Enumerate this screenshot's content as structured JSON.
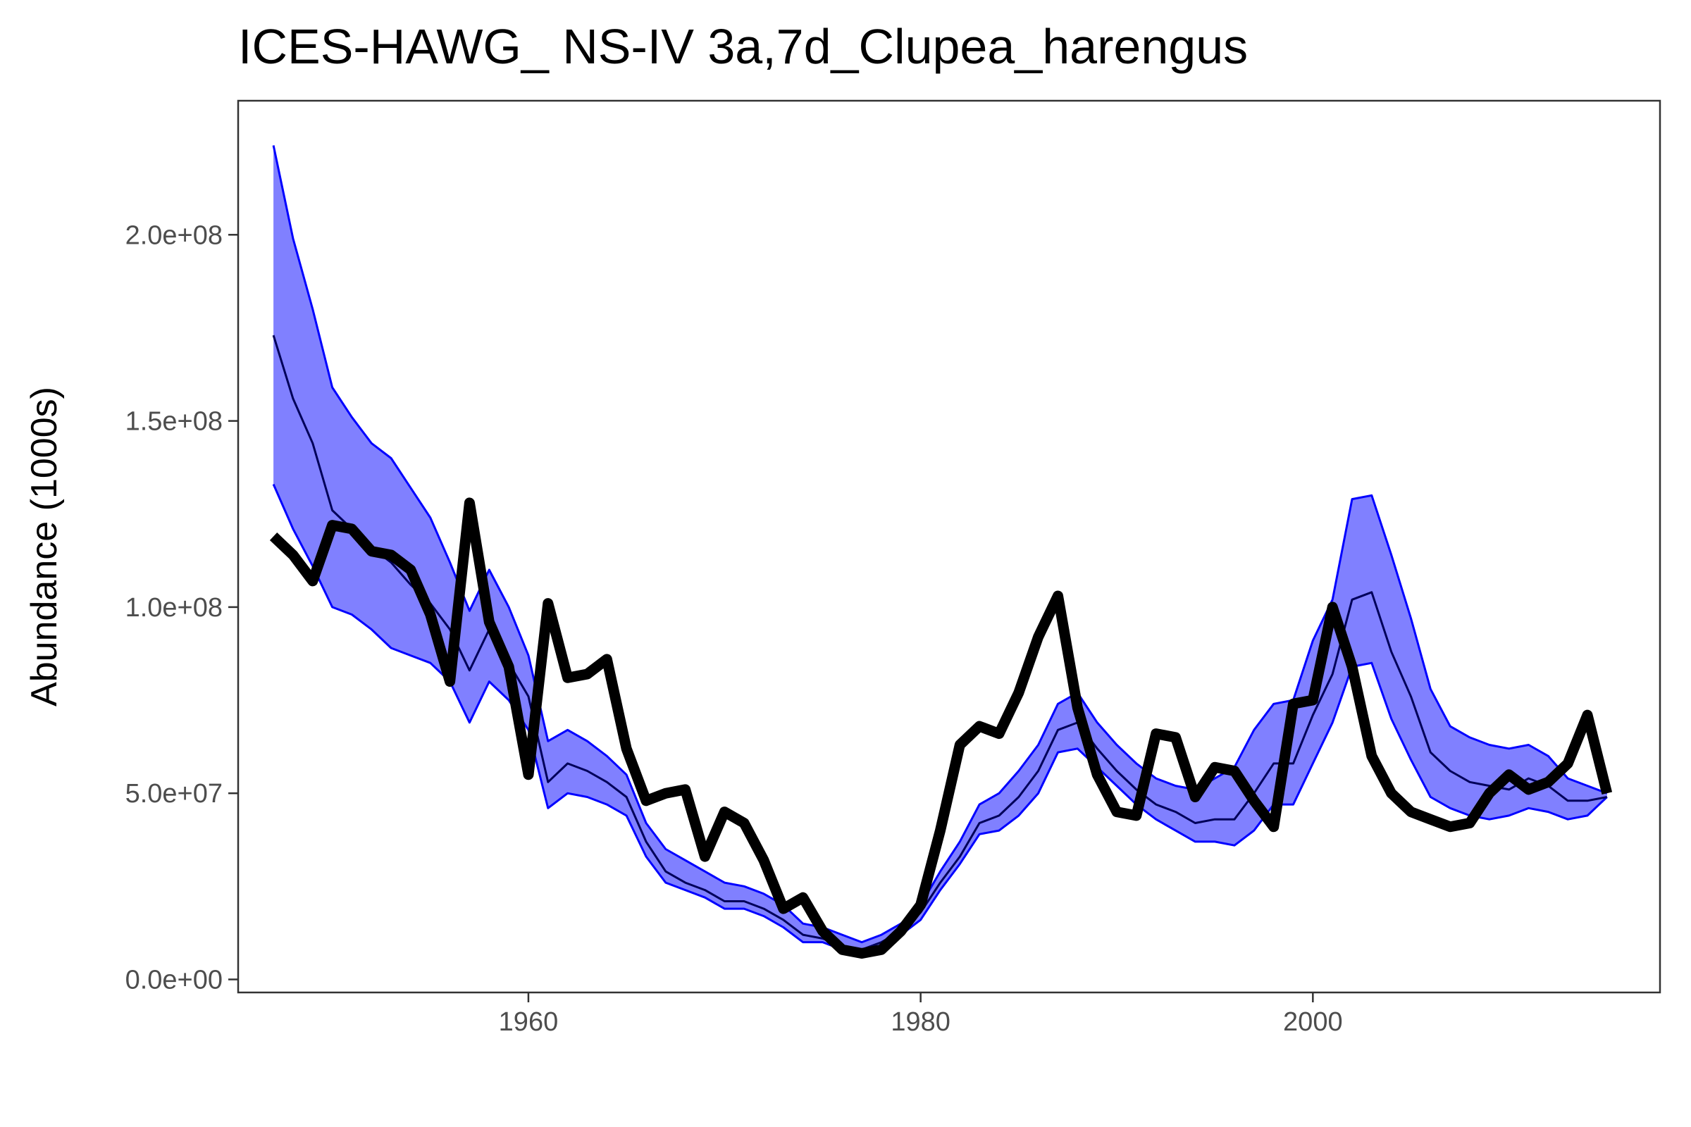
{
  "chart_data": {
    "type": "line",
    "title": "ICES-HAWG_ NS-IV 3a,7d_Clupea_harengus",
    "xlabel": "",
    "ylabel": "Abundance (1000s)",
    "xlim": [
      1945.2,
      2017.7
    ],
    "ylim": [
      -3500000,
      236000000
    ],
    "x_ticks": [
      1960,
      1980,
      2000
    ],
    "x_tick_labels": [
      "1960",
      "1980",
      "2000"
    ],
    "y_ticks": [
      0,
      50000000,
      100000000,
      150000000,
      200000000
    ],
    "y_tick_labels": [
      "0.0e+00",
      "5.0e+07",
      "1.0e+08",
      "1.5e+08",
      "2.0e+08"
    ],
    "grid": false,
    "legend": "none",
    "colors": {
      "band_fill": "#8080ff",
      "band_edge": "#0000ff",
      "median_line": "#00005a",
      "observed_line": "#000000",
      "panel_border": "#333333"
    },
    "x": [
      1947,
      1948,
      1949,
      1950,
      1951,
      1952,
      1953,
      1954,
      1955,
      1956,
      1957,
      1958,
      1959,
      1960,
      1961,
      1962,
      1963,
      1964,
      1965,
      1966,
      1967,
      1968,
      1969,
      1970,
      1971,
      1972,
      1973,
      1974,
      1975,
      1976,
      1977,
      1978,
      1979,
      1980,
      1981,
      1982,
      1983,
      1984,
      1985,
      1986,
      1987,
      1988,
      1989,
      1990,
      1991,
      1992,
      1993,
      1994,
      1995,
      1996,
      1997,
      1998,
      1999,
      2000,
      2001,
      2002,
      2003,
      2004,
      2005,
      2006,
      2007,
      2008,
      2009,
      2010,
      2011,
      2012,
      2013,
      2014,
      2015
    ],
    "series": [
      {
        "role": "band_upper",
        "values": [
          224000000,
          199000000,
          180000000,
          159000000,
          151000000,
          144000000,
          140000000,
          132000000,
          124000000,
          112000000,
          99000000,
          110000000,
          100000000,
          87000000,
          64000000,
          67000000,
          64000000,
          60000000,
          55000000,
          42000000,
          35000000,
          32000000,
          29000000,
          26000000,
          25000000,
          23000000,
          20000000,
          15000000,
          14000000,
          12000000,
          10000000,
          12000000,
          15000000,
          20000000,
          29000000,
          37000000,
          47000000,
          50000000,
          56000000,
          63000000,
          74000000,
          77000000,
          69000000,
          63000000,
          58000000,
          54000000,
          52000000,
          51000000,
          54000000,
          57000000,
          67000000,
          74000000,
          75000000,
          91000000,
          102000000,
          129000000,
          130000000,
          114000000,
          97000000,
          78000000,
          68000000,
          65000000,
          63000000,
          62000000,
          63000000,
          60000000,
          54000000,
          52000000,
          50000000
        ]
      },
      {
        "role": "band_lower",
        "values": [
          133000000,
          121000000,
          111000000,
          100000000,
          98000000,
          94000000,
          89000000,
          87000000,
          85000000,
          80000000,
          69000000,
          80000000,
          75000000,
          67000000,
          46000000,
          50000000,
          49000000,
          47000000,
          44000000,
          33000000,
          26000000,
          24000000,
          22000000,
          19000000,
          19000000,
          17000000,
          14000000,
          10000000,
          10000000,
          8000000,
          7000000,
          8000000,
          12000000,
          16000000,
          24000000,
          31000000,
          39000000,
          40000000,
          44000000,
          50000000,
          61000000,
          62000000,
          57000000,
          52000000,
          47000000,
          43000000,
          40000000,
          37000000,
          37000000,
          36000000,
          40000000,
          47000000,
          47000000,
          58000000,
          69000000,
          84000000,
          85000000,
          70000000,
          59000000,
          49000000,
          46000000,
          44000000,
          43000000,
          44000000,
          46000000,
          45000000,
          43000000,
          44000000,
          49000000
        ]
      },
      {
        "role": "median",
        "values": [
          173000000,
          156000000,
          144000000,
          126000000,
          121000000,
          116000000,
          112000000,
          106000000,
          101000000,
          94000000,
          83000000,
          94000000,
          85000000,
          76000000,
          53000000,
          58000000,
          56000000,
          53000000,
          49000000,
          37000000,
          29000000,
          26000000,
          24000000,
          21000000,
          21000000,
          19000000,
          16000000,
          12000000,
          11000000,
          9000000,
          8000000,
          10000000,
          13000000,
          18000000,
          26000000,
          33000000,
          42000000,
          44000000,
          49000000,
          56000000,
          67000000,
          69000000,
          62000000,
          56000000,
          51000000,
          47000000,
          45000000,
          42000000,
          43000000,
          43000000,
          50000000,
          58000000,
          58000000,
          71000000,
          82000000,
          102000000,
          104000000,
          88000000,
          76000000,
          61000000,
          56000000,
          53000000,
          52000000,
          51000000,
          54000000,
          52000000,
          48000000,
          48000000,
          49000000
        ]
      },
      {
        "role": "observed",
        "values": [
          119000000,
          114000000,
          107000000,
          122000000,
          121000000,
          115000000,
          114000000,
          110000000,
          98000000,
          80000000,
          128000000,
          96000000,
          84000000,
          55000000,
          101000000,
          81000000,
          82000000,
          86000000,
          62000000,
          48000000,
          50000000,
          51000000,
          33000000,
          45000000,
          42000000,
          32000000,
          19000000,
          22000000,
          13000000,
          8000000,
          7000000,
          8000000,
          13000000,
          20000000,
          40000000,
          63000000,
          68000000,
          66000000,
          77000000,
          92000000,
          103000000,
          73000000,
          55000000,
          45000000,
          44000000,
          66000000,
          65000000,
          49000000,
          57000000,
          56000000,
          48000000,
          41000000,
          74000000,
          75000000,
          100000000,
          84000000,
          60000000,
          50000000,
          45000000,
          43000000,
          41000000,
          42000000,
          50000000,
          55000000,
          51000000,
          53000000,
          58000000,
          71000000,
          50000000
        ]
      }
    ]
  }
}
